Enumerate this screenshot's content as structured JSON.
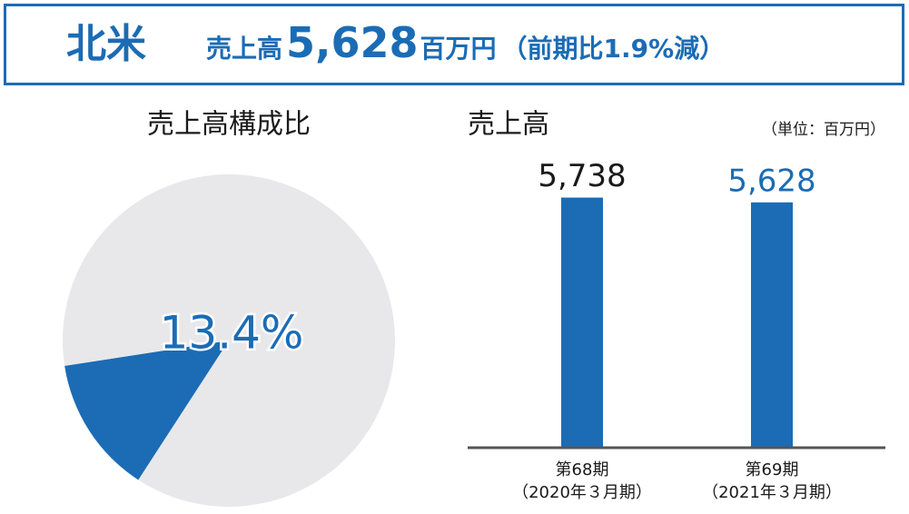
{
  "header": {
    "region": "北米",
    "label": "売上高",
    "value": "5,628",
    "unit": "百万円",
    "change": "（前期比1.9%減）"
  },
  "chart_data": [
    {
      "type": "pie",
      "title": "売上高構成比",
      "categories": [
        null,
        null
      ],
      "values": [
        13.4,
        86.6
      ],
      "value_labels": [
        "13.4%",
        null
      ],
      "colors": [
        "#1b6cb5",
        "#e8e8ea"
      ]
    },
    {
      "type": "bar",
      "title": "売上高",
      "unit_label": "（単位：百万円）",
      "categories": [
        "第68期",
        "第69期"
      ],
      "subcategories": [
        "（2020年３月期）",
        "（2021年３月期）"
      ],
      "values": [
        5738,
        5628
      ],
      "value_labels": [
        "5,738",
        "5,628"
      ],
      "value_label_colors": [
        "#1a1a1a",
        "#1b6cb5"
      ],
      "color": "#1b6cb5",
      "ylim": [
        0,
        6000
      ]
    }
  ]
}
